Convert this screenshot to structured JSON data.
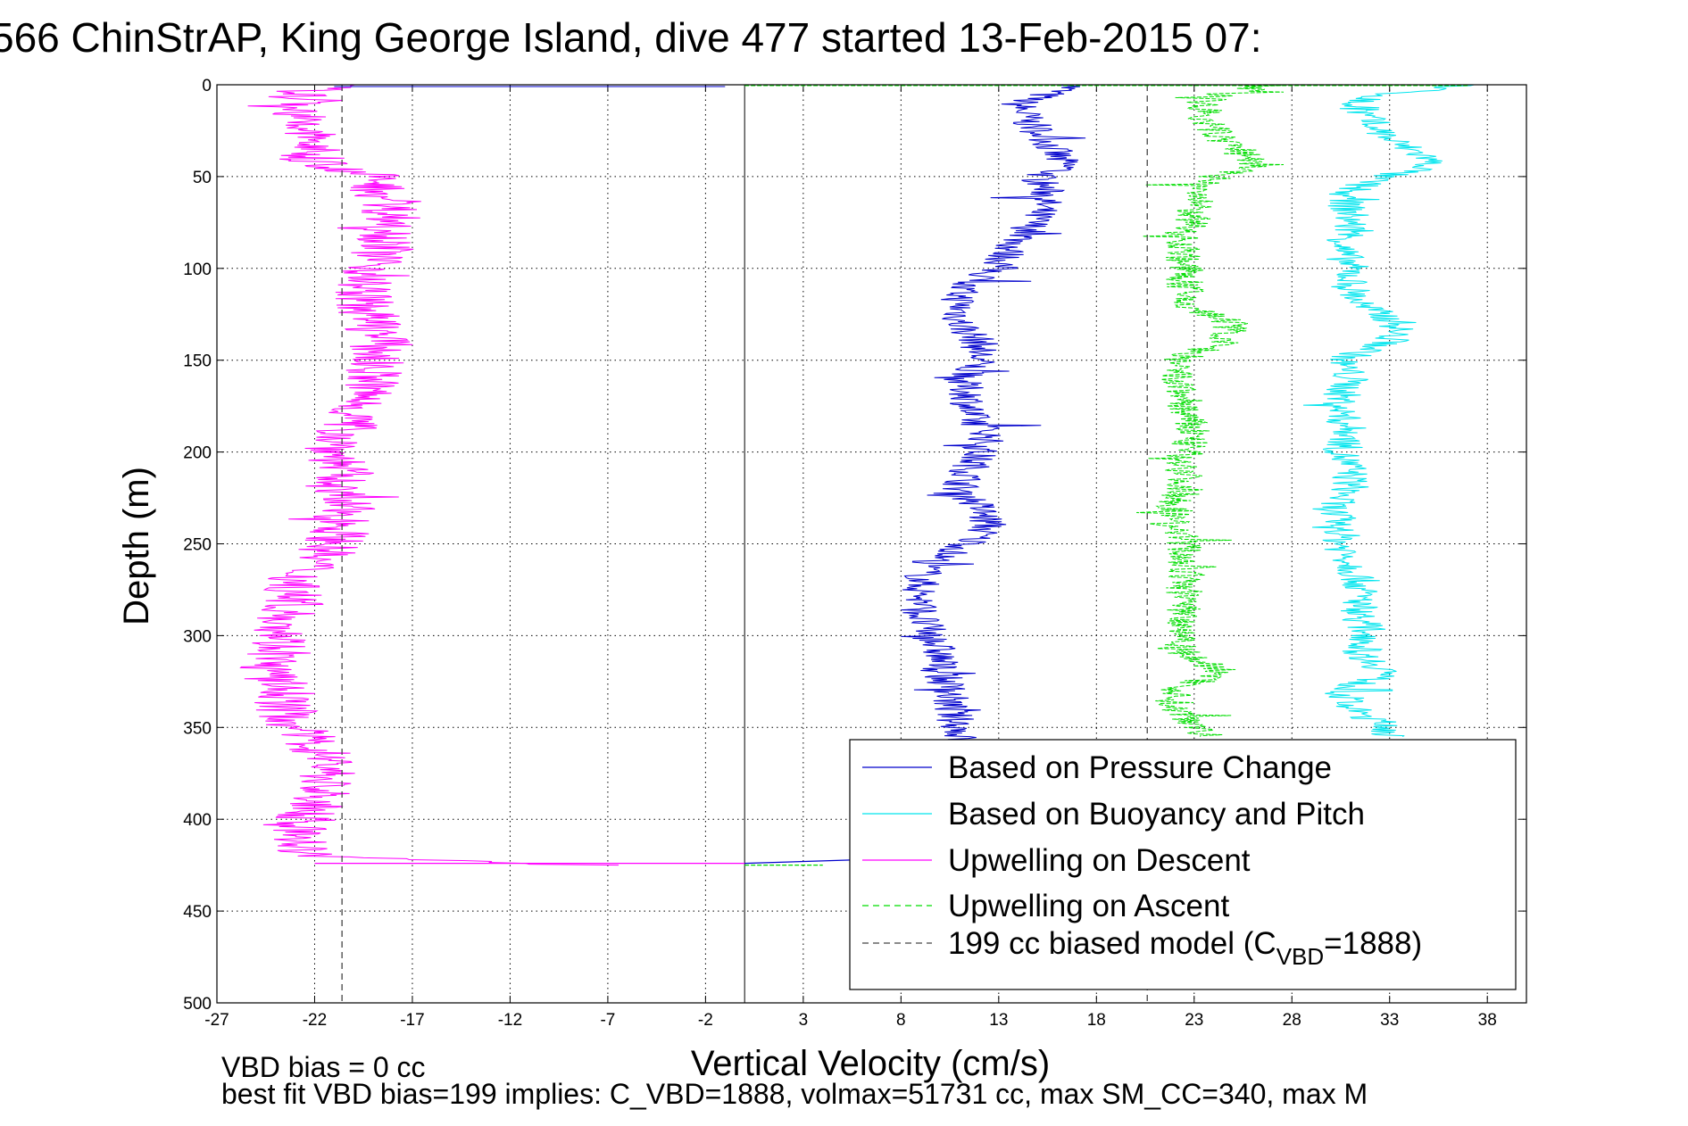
{
  "chart_data": {
    "type": "line",
    "title": "566 ChinStrAP, King George Island, dive 477 started 13-Feb-2015 07:",
    "xlabel": "Vertical Velocity (cm/s)",
    "ylabel": "Depth (m)",
    "xlim": [
      -27,
      40
    ],
    "ylim": [
      0,
      500
    ],
    "y_reversed": true,
    "grid": true,
    "legend_position": "bottom-right",
    "x_ticks": [
      "-27",
      "-22",
      "-17",
      "-12",
      "-7",
      "-2",
      "3",
      "8",
      "13",
      "18",
      "23",
      "28",
      "33",
      "38"
    ],
    "y_ticks": [
      "0",
      "50",
      "100",
      "150",
      "200",
      "250",
      "300",
      "350",
      "400",
      "450",
      "500"
    ],
    "series": [
      {
        "name": "Based on Pressure Change",
        "color": "#0000cc",
        "style": "solid",
        "depth": [
          0,
          5,
          10,
          20,
          30,
          40,
          45,
          50,
          60,
          70,
          80,
          90,
          100,
          110,
          120,
          130,
          140,
          150,
          160,
          170,
          180,
          190,
          200,
          210,
          220,
          230,
          240,
          250,
          260,
          270,
          280,
          290,
          300,
          310,
          320,
          330,
          340,
          350,
          360
        ],
        "velocity": [
          17,
          15.5,
          14,
          14.5,
          15.5,
          16,
          16.5,
          15,
          15.5,
          15,
          14.5,
          13.5,
          13,
          11,
          11,
          11,
          12,
          12,
          11,
          11.5,
          11.5,
          12.5,
          12,
          11.5,
          11,
          12,
          12.5,
          11.5,
          9.5,
          9,
          9,
          9,
          9.5,
          10,
          10,
          10.5,
          10.5,
          11,
          11
        ]
      },
      {
        "name": "Based on Buoyancy and Pitch",
        "color": "#00e5ee",
        "style": "solid",
        "depth": [
          0,
          5,
          10,
          20,
          30,
          40,
          45,
          50,
          60,
          70,
          80,
          90,
          100,
          110,
          120,
          130,
          140,
          150,
          160,
          170,
          180,
          190,
          200,
          210,
          220,
          230,
          240,
          250,
          260,
          270,
          280,
          290,
          300,
          310,
          320,
          330,
          340,
          350,
          355
        ],
        "velocity": [
          37,
          33,
          31,
          32,
          33,
          35,
          35,
          32.5,
          30.5,
          31,
          31,
          30.5,
          31,
          31,
          31.5,
          33.5,
          33,
          30.5,
          31,
          30.5,
          30.5,
          31,
          30.5,
          31,
          31,
          30,
          30.5,
          30.5,
          31,
          31.5,
          31.5,
          31.5,
          32,
          31.5,
          33,
          30.5,
          31,
          33,
          33
        ]
      },
      {
        "name": "Upwelling on Descent",
        "color": "#ff00ff",
        "style": "solid",
        "depth": [
          0,
          5,
          10,
          20,
          30,
          40,
          50,
          60,
          70,
          80,
          90,
          100,
          110,
          120,
          130,
          140,
          150,
          160,
          170,
          180,
          190,
          200,
          210,
          220,
          230,
          240,
          250,
          260,
          270,
          280,
          290,
          300,
          310,
          320,
          330,
          340,
          350,
          360,
          370,
          380,
          390,
          400,
          410,
          420,
          425
        ],
        "velocity": [
          -21,
          -23,
          -22.5,
          -23,
          -22,
          -22.5,
          -19,
          -18.5,
          -18,
          -18,
          -18.5,
          -19,
          -19.5,
          -19.5,
          -19,
          -18.5,
          -19,
          -19,
          -19.5,
          -20,
          -20.5,
          -21,
          -20.5,
          -21,
          -20.5,
          -20.5,
          -21,
          -22,
          -23,
          -23,
          -23.5,
          -23.5,
          -24,
          -24.5,
          -23.5,
          -23.5,
          -23,
          -22,
          -21,
          -21.5,
          -22,
          -22.5,
          -23,
          -22.5,
          -8
        ]
      },
      {
        "name": "Upwelling on Ascent",
        "color": "#00dd00",
        "style": "dashed",
        "depth": [
          0,
          5,
          10,
          20,
          30,
          40,
          45,
          50,
          60,
          70,
          80,
          90,
          100,
          110,
          120,
          130,
          140,
          150,
          160,
          170,
          180,
          190,
          200,
          210,
          220,
          230,
          240,
          250,
          260,
          270,
          280,
          290,
          300,
          310,
          320,
          330,
          340,
          350,
          355
        ],
        "velocity": [
          27,
          24.5,
          23.5,
          23.5,
          24.5,
          26,
          26,
          24,
          23,
          23,
          22.5,
          22.5,
          22.5,
          22.5,
          22.5,
          25,
          24.5,
          22,
          22,
          22.5,
          22.5,
          23,
          22.5,
          22.5,
          22.5,
          22,
          22,
          22.5,
          22.5,
          22.5,
          22.5,
          22.5,
          22.5,
          22.5,
          24.5,
          22,
          22,
          23.5,
          23.5
        ]
      },
      {
        "name": "199 cc biased model (C_VBD=1888)",
        "color": "#444444",
        "style": "dashed",
        "lines": [
          -20.6,
          20.6
        ]
      }
    ],
    "legend": [
      {
        "label": "Based on Pressure Change",
        "color": "#0000cc",
        "style": "solid"
      },
      {
        "label": "Based on Buoyancy and Pitch",
        "color": "#00e5ee",
        "style": "solid"
      },
      {
        "label": "Upwelling on Descent",
        "color": "#ff00ff",
        "style": "solid"
      },
      {
        "label": "Upwelling on Ascent",
        "color": "#00dd00",
        "style": "dashed"
      },
      {
        "label_main": "199 cc biased model (C",
        "label_sub": "VBD",
        "label_tail": "=1888)",
        "color": "#444444",
        "style": "dashed"
      }
    ],
    "footnotes": [
      "VBD bias = 0 cc",
      "best fit VBD bias=199 implies: C_VBD=1888, volmax=51731 cc, max SM_CC=340, max M"
    ]
  }
}
